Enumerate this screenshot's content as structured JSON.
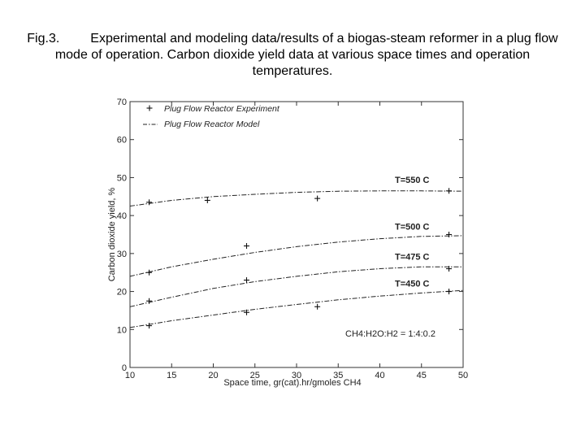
{
  "caption": {
    "fig": "Fig.3.",
    "text": "Experimental and modeling data/results of a biogas-steam reformer in a plug flow mode of operation. Carbon dioxide yield data at various space times and operation temperatures."
  },
  "chart_data": {
    "type": "line",
    "title": "",
    "xlabel": "Space time, gr(cat).hr/gmoles CH4",
    "ylabel": "Carbon dioxide yield, %",
    "xlim": [
      10,
      50
    ],
    "ylim": [
      0,
      70
    ],
    "xticks": [
      10,
      15,
      20,
      25,
      30,
      35,
      40,
      45,
      50
    ],
    "yticks": [
      0,
      10,
      20,
      30,
      40,
      50,
      60,
      70
    ],
    "grid": false,
    "legend": {
      "placement": "top-left",
      "entries": [
        "Plug Flow Reactor Experiment",
        "Plug Flow Reactor Model"
      ]
    },
    "annotation": "CH4:H2O:H2 = 1:4:0.2",
    "series": [
      {
        "name": "T=550 C",
        "experiment": [
          [
            12.3,
            43.5
          ],
          [
            19.3,
            44.0
          ],
          [
            24.0,
            32.0
          ],
          [
            32.5,
            44.5
          ],
          [
            48.3,
            46.5
          ]
        ],
        "model_x": [
          10,
          15,
          20,
          25,
          30,
          35,
          40,
          45,
          50
        ],
        "model_y": [
          42.5,
          44.0,
          45.0,
          45.6,
          46.1,
          46.4,
          46.5,
          46.5,
          46.4
        ]
      },
      {
        "name": "T=500 C",
        "experiment": [
          [
            12.3,
            25.0
          ],
          [
            48.3,
            35.0
          ]
        ],
        "model_x": [
          10,
          15,
          20,
          25,
          30,
          35,
          40,
          45,
          50
        ],
        "model_y": [
          24.0,
          26.5,
          28.5,
          30.3,
          31.8,
          33.0,
          33.9,
          34.5,
          34.7
        ]
      },
      {
        "name": "T=475 C",
        "experiment": [
          [
            12.3,
            17.5
          ],
          [
            24.0,
            23.0
          ],
          [
            48.3,
            26.0
          ]
        ],
        "model_x": [
          10,
          15,
          20,
          25,
          30,
          35,
          40,
          45,
          50
        ],
        "model_y": [
          16.0,
          18.5,
          20.8,
          22.6,
          24.0,
          25.2,
          26.0,
          26.5,
          26.5
        ]
      },
      {
        "name": "T=450 C",
        "experiment": [
          [
            12.3,
            11.0
          ],
          [
            24.0,
            14.5
          ],
          [
            32.5,
            16.0
          ],
          [
            48.3,
            20.0
          ]
        ],
        "model_x": [
          10,
          15,
          20,
          25,
          30,
          35,
          40,
          45,
          50
        ],
        "model_y": [
          10.5,
          12.3,
          13.8,
          15.3,
          16.6,
          17.8,
          18.8,
          19.6,
          20.3
        ]
      }
    ]
  }
}
